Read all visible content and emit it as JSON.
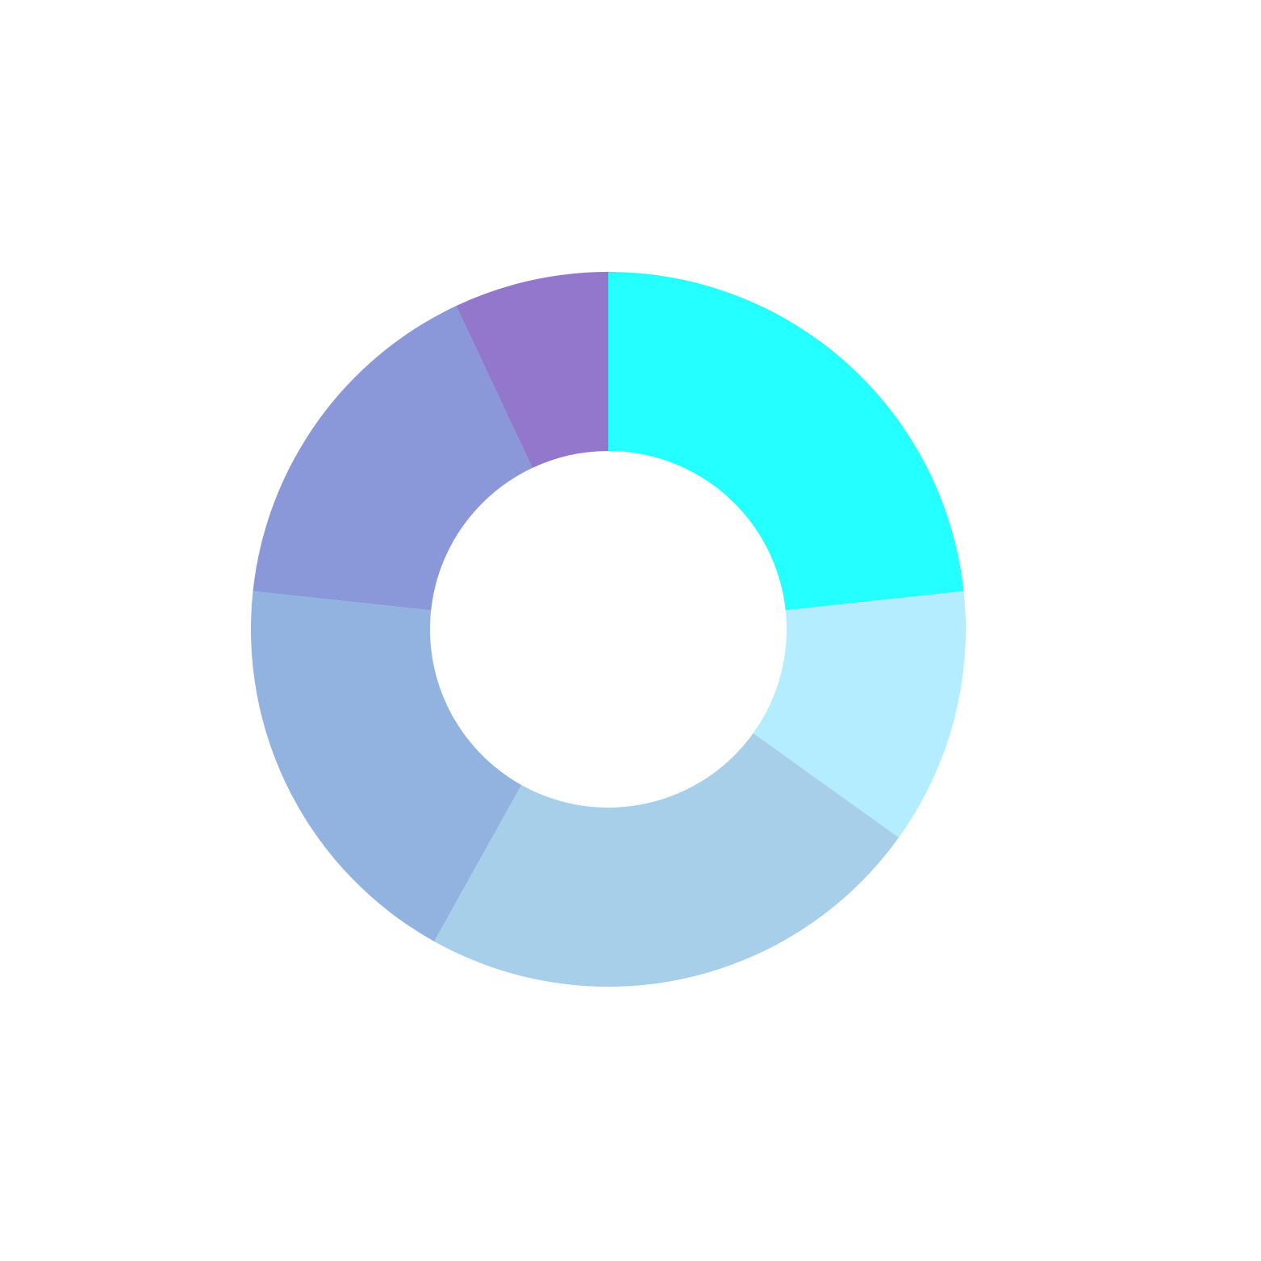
{
  "chart_data": {
    "type": "donut",
    "values": [
      23.3,
      11.6,
      23.2,
      18.6,
      16.3,
      7.0
    ],
    "colors": [
      "#24ffff",
      "#b3edff",
      "#a8cfe9",
      "#92b3e0",
      "#8a97d9",
      "#9377cd"
    ]
  }
}
